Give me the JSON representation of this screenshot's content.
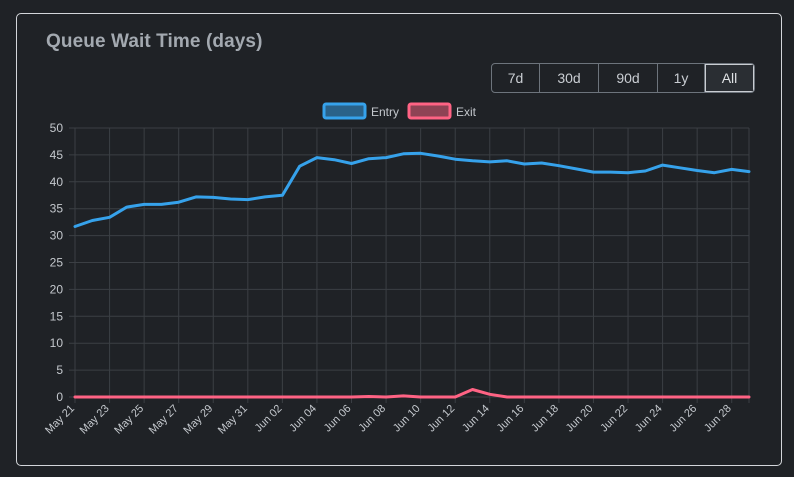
{
  "title": "Queue Wait Time (days)",
  "ranges": [
    {
      "label": "7d",
      "active": false
    },
    {
      "label": "30d",
      "active": false
    },
    {
      "label": "90d",
      "active": false
    },
    {
      "label": "1y",
      "active": false
    },
    {
      "label": "All",
      "active": true
    }
  ],
  "colors": {
    "entry": "#36a2eb",
    "exit": "#ff6384",
    "grid": "#3b3f44",
    "tick": "#c4c8cd"
  },
  "chart_data": {
    "type": "line",
    "title": "",
    "xlabel": "",
    "ylabel": "",
    "ylim": [
      0,
      50
    ],
    "yticks": [
      0,
      5,
      10,
      15,
      20,
      25,
      30,
      35,
      40,
      45,
      50
    ],
    "grid": true,
    "legend_position": "top",
    "x": [
      "May 21",
      "May 22",
      "May 23",
      "May 24",
      "May 25",
      "May 26",
      "May 27",
      "May 28",
      "May 29",
      "May 30",
      "May 31",
      "Jun 01",
      "Jun 02",
      "Jun 03",
      "Jun 04",
      "Jun 05",
      "Jun 06",
      "Jun 07",
      "Jun 08",
      "Jun 09",
      "Jun 10",
      "Jun 11",
      "Jun 12",
      "Jun 13",
      "Jun 14",
      "Jun 15",
      "Jun 16",
      "Jun 17",
      "Jun 18",
      "Jun 19",
      "Jun 20",
      "Jun 21",
      "Jun 22",
      "Jun 23",
      "Jun 24",
      "Jun 25",
      "Jun 26",
      "Jun 27",
      "Jun 28",
      "Jun 29"
    ],
    "x_tick_labels": [
      "May 21",
      "May 23",
      "May 25",
      "May 27",
      "May 29",
      "May 31",
      "Jun 02",
      "Jun 04",
      "Jun 06",
      "Jun 08",
      "Jun 10",
      "Jun 12",
      "Jun 14",
      "Jun 16",
      "Jun 18",
      "Jun 20",
      "Jun 22",
      "Jun 24",
      "Jun 26",
      "Jun 28"
    ],
    "series": [
      {
        "name": "Entry",
        "values": [
          31.7,
          32.8,
          33.4,
          35.3,
          35.8,
          35.8,
          36.2,
          37.2,
          37.1,
          36.8,
          36.7,
          37.2,
          37.5,
          42.9,
          44.5,
          44.1,
          43.4,
          44.3,
          44.5,
          45.2,
          45.3,
          44.8,
          44.2,
          43.9,
          43.7,
          43.9,
          43.3,
          43.5,
          43.0,
          42.4,
          41.8,
          41.8,
          41.7,
          42.0,
          43.1,
          42.6,
          42.1,
          41.7,
          42.3,
          41.9
        ]
      },
      {
        "name": "Exit",
        "values": [
          0,
          0,
          0,
          0,
          0,
          0,
          0,
          0,
          0,
          0,
          0,
          0,
          0,
          0,
          0,
          0,
          0,
          0.1,
          0,
          0.2,
          0,
          0,
          0,
          1.4,
          0.5,
          0,
          0,
          0,
          0,
          0,
          0,
          0,
          0,
          0,
          0,
          0,
          0,
          0,
          0,
          0
        ]
      }
    ]
  }
}
